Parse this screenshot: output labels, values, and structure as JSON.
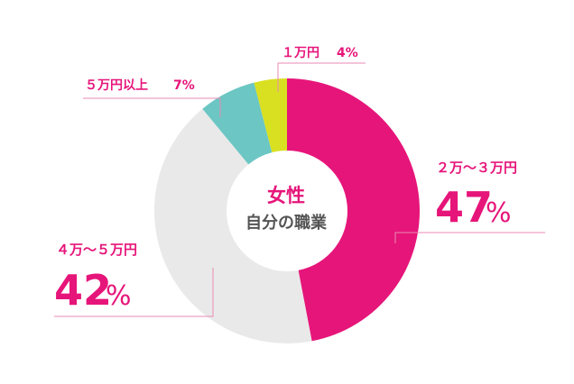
{
  "colors": {
    "accent": "#e6157a",
    "leader": "#e98ab4",
    "slice_47": "#e6157a",
    "slice_42": "#e9e9e9",
    "slice_7": "#6cc6c3",
    "slice_4": "#d9e021",
    "center_sub": "#555555"
  },
  "chart_data": {
    "type": "pie",
    "donut": true,
    "center_title": "女性",
    "center_subtitle": "自分の職業",
    "slices": [
      {
        "label": "２万～３万円",
        "value": 47,
        "display": "47",
        "unit": "%",
        "color": "#e6157a"
      },
      {
        "label": "４万～５万円",
        "value": 42,
        "display": "42",
        "unit": "%",
        "color": "#e9e9e9"
      },
      {
        "label": "５万円以上",
        "value": 7,
        "display": "7%",
        "unit": "",
        "color": "#6cc6c3"
      },
      {
        "label": "１万円",
        "value": 4,
        "display": "4%",
        "unit": "",
        "color": "#d9e021"
      }
    ]
  }
}
